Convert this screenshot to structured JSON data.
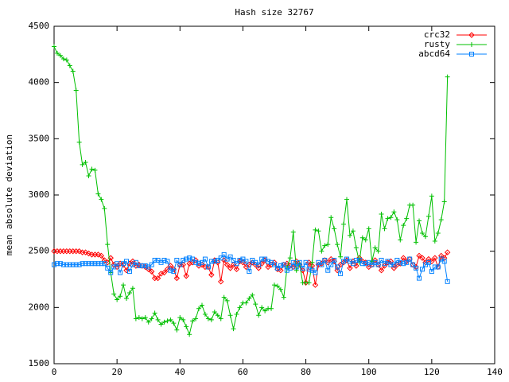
{
  "chart_data": {
    "type": "line",
    "title": "Hash size 32767",
    "y_label": "mean absolute deviation",
    "x": [
      0,
      1,
      2,
      3,
      4,
      5,
      6,
      7,
      8,
      9,
      10,
      11,
      12,
      13,
      14,
      15,
      16,
      17,
      18,
      19,
      20,
      21,
      22,
      23,
      24,
      25,
      26,
      27,
      28,
      29,
      30,
      31,
      32,
      33,
      34,
      35,
      36,
      37,
      38,
      39,
      40,
      41,
      42,
      43,
      44,
      45,
      46,
      47,
      48,
      49,
      50,
      51,
      52,
      53,
      54,
      55,
      56,
      57,
      58,
      59,
      60,
      61,
      62,
      63,
      64,
      65,
      66,
      67,
      68,
      69,
      70,
      71,
      72,
      73,
      74,
      75,
      76,
      77,
      78,
      79,
      80,
      81,
      82,
      83,
      84,
      85,
      86,
      87,
      88,
      89,
      90,
      91,
      92,
      93,
      94,
      95,
      96,
      97,
      98,
      99,
      100,
      101,
      102,
      103,
      104,
      105,
      106,
      107,
      108,
      109,
      110,
      111,
      112,
      113,
      114,
      115,
      116,
      117,
      118,
      119,
      120,
      121,
      122,
      123,
      124,
      125
    ],
    "series": [
      {
        "name": "crc32",
        "color": "#ff0000",
        "marker": "diamond",
        "values": [
          2500,
          2500,
          2500,
          2500,
          2500,
          2500,
          2500,
          2500,
          2500,
          2490,
          2490,
          2480,
          2470,
          2470,
          2470,
          2460,
          2420,
          2400,
          2440,
          2380,
          2360,
          2390,
          2380,
          2330,
          2390,
          2410,
          2370,
          2380,
          2370,
          2360,
          2340,
          2320,
          2260,
          2260,
          2300,
          2310,
          2340,
          2370,
          2340,
          2260,
          2380,
          2380,
          2280,
          2390,
          2400,
          2420,
          2370,
          2380,
          2360,
          2360,
          2290,
          2420,
          2400,
          2230,
          2420,
          2380,
          2350,
          2380,
          2340,
          2410,
          2400,
          2360,
          2380,
          2400,
          2380,
          2350,
          2390,
          2420,
          2360,
          2380,
          2400,
          2340,
          2330,
          2380,
          2390,
          2370,
          2360,
          2410,
          2380,
          2330,
          2220,
          2400,
          2370,
          2200,
          2380,
          2390,
          2420,
          2400,
          2430,
          2410,
          2330,
          2380,
          2400,
          2420,
          2350,
          2410,
          2370,
          2440,
          2410,
          2400,
          2360,
          2380,
          2420,
          2380,
          2330,
          2370,
          2400,
          2410,
          2350,
          2380,
          2390,
          2440,
          2410,
          2430,
          2380,
          2360,
          2460,
          2440,
          2400,
          2430,
          2410,
          2440,
          2360,
          2460,
          2440,
          2490
        ]
      },
      {
        "name": "rusty",
        "color": "#00c000",
        "marker": "plus",
        "values": [
          4320,
          4260,
          4240,
          4210,
          4200,
          4150,
          4100,
          3930,
          3470,
          3270,
          3290,
          3170,
          3230,
          3220,
          3010,
          2960,
          2880,
          2560,
          2310,
          2120,
          2070,
          2100,
          2200,
          2080,
          2130,
          2170,
          1900,
          1910,
          1900,
          1910,
          1870,
          1900,
          1950,
          1890,
          1850,
          1870,
          1880,
          1890,
          1860,
          1800,
          1910,
          1890,
          1830,
          1760,
          1880,
          1900,
          1990,
          2020,
          1940,
          1900,
          1890,
          1960,
          1930,
          1900,
          2090,
          2060,
          1930,
          1810,
          1940,
          2000,
          2040,
          2040,
          2080,
          2110,
          2030,
          1930,
          2000,
          1970,
          1990,
          1990,
          2200,
          2190,
          2160,
          2090,
          2350,
          2440,
          2670,
          2330,
          2390,
          2220,
          2220,
          2220,
          2400,
          2690,
          2680,
          2500,
          2550,
          2560,
          2800,
          2700,
          2560,
          2450,
          2740,
          2960,
          2640,
          2680,
          2530,
          2400,
          2620,
          2600,
          2700,
          2410,
          2530,
          2500,
          2830,
          2700,
          2790,
          2800,
          2850,
          2780,
          2600,
          2730,
          2790,
          2910,
          2910,
          2580,
          2770,
          2660,
          2630,
          2810,
          2990,
          2590,
          2660,
          2780,
          2940,
          4050
        ]
      },
      {
        "name": "abcd64",
        "color": "#0080ff",
        "marker": "square",
        "values": [
          2380,
          2390,
          2390,
          2380,
          2380,
          2380,
          2380,
          2380,
          2380,
          2390,
          2390,
          2390,
          2390,
          2390,
          2390,
          2390,
          2390,
          2350,
          2310,
          2360,
          2390,
          2310,
          2390,
          2410,
          2320,
          2380,
          2400,
          2370,
          2370,
          2370,
          2360,
          2380,
          2420,
          2420,
          2400,
          2420,
          2410,
          2330,
          2320,
          2420,
          2380,
          2420,
          2430,
          2440,
          2430,
          2400,
          2390,
          2400,
          2430,
          2360,
          2410,
          2410,
          2420,
          2440,
          2470,
          2430,
          2450,
          2420,
          2390,
          2420,
          2430,
          2410,
          2320,
          2420,
          2400,
          2380,
          2430,
          2430,
          2410,
          2400,
          2380,
          2350,
          2370,
          2380,
          2330,
          2350,
          2400,
          2360,
          2400,
          2350,
          2400,
          2340,
          2330,
          2310,
          2400,
          2380,
          2420,
          2330,
          2380,
          2420,
          2360,
          2300,
          2410,
          2430,
          2410,
          2390,
          2420,
          2420,
          2390,
          2390,
          2400,
          2380,
          2400,
          2380,
          2420,
          2390,
          2410,
          2380,
          2380,
          2420,
          2400,
          2390,
          2400,
          2430,
          2380,
          2350,
          2260,
          2340,
          2380,
          2400,
          2320,
          2360,
          2360,
          2430,
          2410,
          2230
        ]
      }
    ],
    "xlim": [
      0,
      140
    ],
    "xticks": [
      0,
      20,
      40,
      60,
      80,
      100,
      120,
      140
    ],
    "ylim": [
      1500,
      4500
    ],
    "yticks": [
      1500,
      2000,
      2500,
      3000,
      3500,
      4000,
      4500
    ],
    "legend": "top-right"
  }
}
